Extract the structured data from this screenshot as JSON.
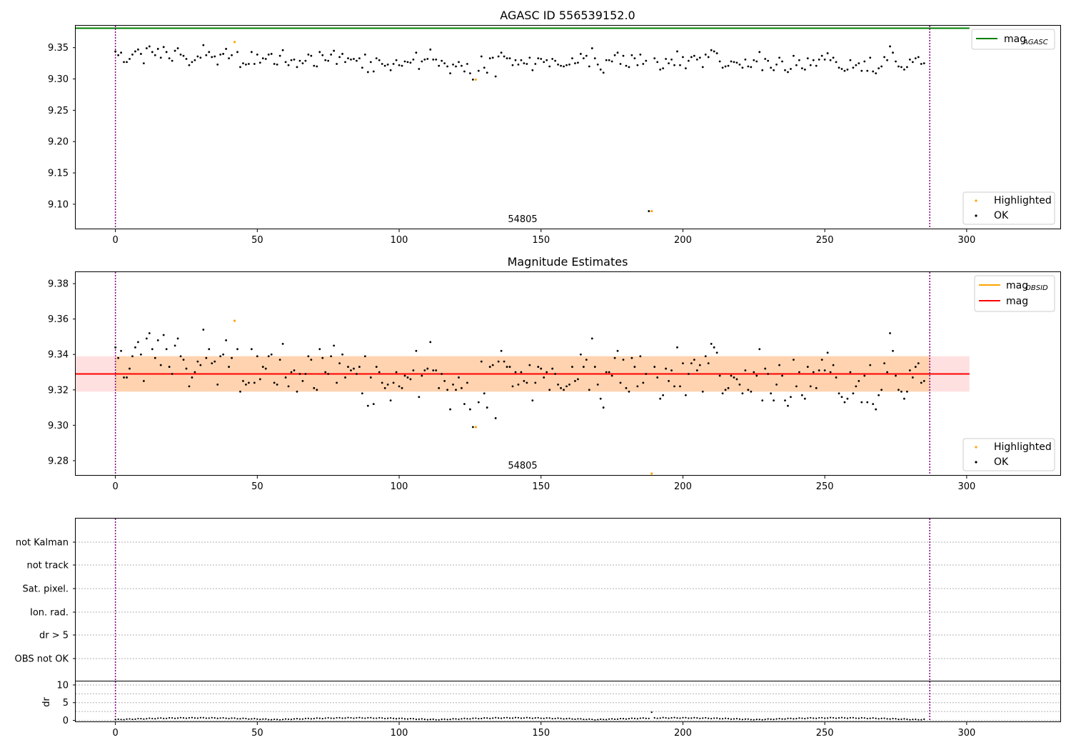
{
  "chart_data": [
    {
      "id": "agasc",
      "type": "scatter",
      "title": "AGASC ID 556539152.0",
      "annotation": "54805",
      "xlim": [
        -14,
        333
      ],
      "ylim": [
        9.06,
        9.385
      ],
      "xticks": [
        0,
        50,
        100,
        150,
        200,
        250,
        300
      ],
      "yticks": [
        9.1,
        9.15,
        9.2,
        9.25,
        9.3,
        9.35
      ],
      "vlines": [
        0,
        287
      ],
      "hline": {
        "value": 9.381,
        "color": "#008000"
      },
      "legend_top": {
        "label": "mag",
        "sub": "AGASC",
        "color": "#008000"
      },
      "legend_bottom": [
        {
          "label": "Highlighted",
          "color": "#ffa500"
        },
        {
          "label": "OK",
          "color": "#000000"
        }
      ],
      "highlighted": [
        {
          "x": 42,
          "y": 9.359
        },
        {
          "x": 127,
          "y": 9.299
        },
        {
          "x": 189,
          "y": 9.089
        }
      ],
      "ok_series_note": "287 OK samples, magnitude 9.304–9.355, mean ≈ 9.329",
      "ok_values": [
        9.344,
        9.338,
        9.342,
        9.327,
        9.327,
        9.332,
        9.339,
        9.344,
        9.347,
        9.34,
        9.325,
        9.349,
        9.352,
        9.343,
        9.338,
        9.348,
        9.334,
        9.351,
        9.343,
        9.333,
        9.329,
        9.345,
        9.349,
        9.339,
        9.337,
        9.332,
        9.322,
        9.327,
        9.33,
        9.336,
        9.334,
        9.354,
        9.338,
        9.343,
        9.335,
        9.336,
        9.323,
        9.339,
        9.34,
        9.348,
        9.333,
        9.338,
        9.359,
        9.343,
        9.319,
        9.325,
        9.323,
        9.324,
        9.343,
        9.324,
        9.339,
        9.326,
        9.333,
        9.332,
        9.339,
        9.34,
        9.324,
        9.323,
        9.337,
        9.346,
        9.327,
        9.322,
        9.33,
        9.331,
        9.319,
        9.329,
        9.325,
        9.329,
        9.339,
        9.337,
        9.321,
        9.32,
        9.343,
        9.338,
        9.33,
        9.329,
        9.339,
        9.345,
        9.324,
        9.335,
        9.34,
        9.327,
        9.333,
        9.331,
        9.332,
        9.329,
        9.333,
        9.318,
        9.339,
        9.311,
        9.327,
        9.312,
        9.333,
        9.33,
        9.324,
        9.321,
        9.323,
        9.314,
        9.324,
        9.33,
        9.322,
        9.321,
        9.328,
        9.327,
        9.326,
        9.331,
        9.342,
        9.316,
        9.328,
        9.331,
        9.332,
        9.347,
        9.331,
        9.331,
        9.321,
        9.329,
        9.325,
        9.32,
        9.309,
        9.323,
        9.32,
        9.327,
        9.321,
        9.312,
        9.324,
        9.309,
        9.299,
        9.322,
        9.313,
        9.336,
        9.318,
        9.31,
        9.333,
        9.334,
        9.304,
        9.336,
        9.342,
        9.336,
        9.333,
        9.333,
        9.322,
        9.33,
        9.323,
        9.33,
        9.325,
        9.324,
        9.334,
        9.314,
        9.324,
        9.333,
        9.332,
        9.327,
        9.33,
        9.32,
        9.332,
        9.329,
        9.323,
        9.321,
        9.32,
        9.322,
        9.323,
        9.333,
        9.325,
        9.326,
        9.34,
        9.333,
        9.337,
        9.32,
        9.349,
        9.333,
        9.323,
        9.315,
        9.31,
        9.33,
        9.33,
        9.328,
        9.338,
        9.342,
        9.324,
        9.337,
        9.321,
        9.319,
        9.338,
        9.333,
        9.322,
        9.339,
        9.324,
        9.329,
        9.089,
        9.328,
        9.333,
        9.327,
        9.315,
        9.317,
        9.332,
        9.325,
        9.331,
        9.322,
        9.344,
        9.322,
        9.335,
        9.317,
        9.329,
        9.335,
        9.337,
        9.331,
        9.334,
        9.319,
        9.339,
        9.335,
        9.346,
        9.344,
        9.341,
        9.328,
        9.318,
        9.32,
        9.321,
        9.328,
        9.327,
        9.326,
        9.323,
        9.318,
        9.331,
        9.32,
        9.319,
        9.33,
        9.328,
        9.343,
        9.314,
        9.332,
        9.329,
        9.318,
        9.314,
        9.323,
        9.334,
        9.328,
        9.314,
        9.311,
        9.316,
        9.337,
        9.322,
        9.33,
        9.317,
        9.315,
        9.333,
        9.322,
        9.33,
        9.321,
        9.331,
        9.337,
        9.331,
        9.341,
        9.33,
        9.334,
        9.327,
        9.318,
        9.316,
        9.313,
        9.315,
        9.33,
        9.318,
        9.322,
        9.325,
        9.313,
        9.328,
        9.313,
        9.334,
        9.312,
        9.309,
        9.317,
        9.32,
        9.335,
        9.33,
        9.352,
        9.342,
        9.328,
        9.32,
        9.319,
        9.315,
        9.319,
        9.331,
        9.327,
        9.333,
        9.335,
        9.324,
        9.325
      ]
    },
    {
      "id": "magest",
      "type": "scatter",
      "title": "Magnitude Estimates",
      "annotation": "54805",
      "xlim": [
        -14,
        333
      ],
      "ylim": [
        9.2715,
        9.3865
      ],
      "xticks": [
        0,
        50,
        100,
        150,
        200,
        250,
        300
      ],
      "yticks": [
        9.28,
        9.3,
        9.32,
        9.34,
        9.36,
        9.38
      ],
      "vlines": [
        0,
        287
      ],
      "mag_obsid": {
        "value": 9.329,
        "band": [
          9.319,
          9.339
        ],
        "color": "#ffa500",
        "span": [
          0,
          287
        ]
      },
      "mag": {
        "value": 9.329,
        "band": [
          9.319,
          9.339
        ],
        "color": "#ff0000",
        "span": [
          -14,
          301
        ]
      },
      "legend_top": [
        {
          "label": "mag",
          "sub": "OBSID",
          "color": "#ffa500"
        },
        {
          "label": "mag",
          "sub": "",
          "color": "#ff0000"
        }
      ],
      "legend_bottom": [
        {
          "label": "Highlighted",
          "color": "#ffa500"
        },
        {
          "label": "OK",
          "color": "#000000"
        }
      ],
      "highlighted": [
        {
          "x": 42,
          "y": 9.359
        },
        {
          "x": 127,
          "y": 9.299
        },
        {
          "x": 189,
          "y": 9.2715
        }
      ]
    },
    {
      "id": "flags",
      "type": "scatter",
      "title": "",
      "categories": [
        "not Kalman",
        "not track",
        "Sat. pixel.",
        "Ion. rad.",
        "dr > 5",
        "OBS not OK"
      ],
      "xlim": [
        -14,
        333
      ],
      "vlines": [
        0,
        287
      ],
      "flagged_points": []
    },
    {
      "id": "dr",
      "type": "scatter",
      "ylabel": "dr",
      "xlim": [
        -14,
        333
      ],
      "ylim": [
        -0.5,
        11
      ],
      "xticks": [
        0,
        50,
        100,
        150,
        200,
        250,
        300
      ],
      "yticks": [
        0,
        5,
        10
      ],
      "vlines": [
        0,
        287
      ],
      "dr_outlier": {
        "x": 189,
        "y": 2.3
      },
      "dr_note": "dr values between 0 and ~1 for all samples"
    }
  ]
}
